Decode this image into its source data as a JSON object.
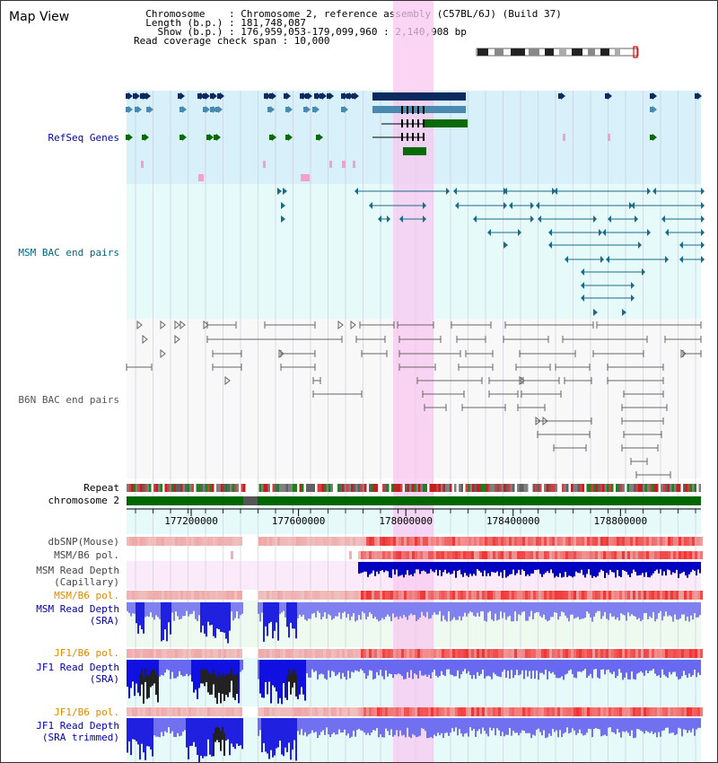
{
  "title": "Map View",
  "info": {
    "chromosome_line": "  Chromosome    : Chromosome 2, reference assembly (C57BL/6J) (Build 37)",
    "length_line": "  Length (b.p.) : 181,748,087",
    "show_line": "    Show (b.p.) : 176,959,053-179,099,960 : 2,140,908 bp",
    "coverage_line": "Read coverage check span : 10,000"
  },
  "tracks": {
    "refseq": "RefSeq Genes",
    "msm_bac": "MSM BAC end pairs",
    "b6n_bac": "B6N BAC end pairs",
    "repeat": "Repeat",
    "chromosome": "chromosome 2",
    "dbsnp": "dbSNP(Mouse)",
    "msm_b6_pol_1": "MSM/B6 pol.",
    "msm_depth_cap_1": "MSM Read Depth",
    "msm_depth_cap_2": "(Capillary)",
    "msm_b6_pol_2": "MSM/B6 pol.",
    "msm_depth_sra_1": "MSM Read Depth",
    "msm_depth_sra_2": "(SRA)",
    "jf1_b6_pol_1": "JF1/B6 pol.",
    "jf1_depth_sra_1": "JF1 Read Depth",
    "jf1_depth_sra_2": "(SRA)",
    "jf1_b6_pol_2": "JF1/B6 pol.",
    "jf1_depth_trim_1": "JF1 Read Depth",
    "jf1_depth_trim_2": "(SRA trimmed)"
  },
  "ruler": {
    "ticks": [
      {
        "pos": 177200000,
        "label": "177200000"
      },
      {
        "pos": 177600000,
        "label": "177600000"
      },
      {
        "pos": 178000000,
        "label": "178000000"
      },
      {
        "pos": 178400000,
        "label": "178400000"
      },
      {
        "pos": 178800000,
        "label": "178800000"
      }
    ]
  },
  "colors": {
    "refseq_text": "#0000aa",
    "msm_bac_text": "#006680",
    "b6n_bac_text": "#555555",
    "orange_text": "#e08a00",
    "blue_text": "#0000aa",
    "highlight": "#f8c8f0"
  }
}
